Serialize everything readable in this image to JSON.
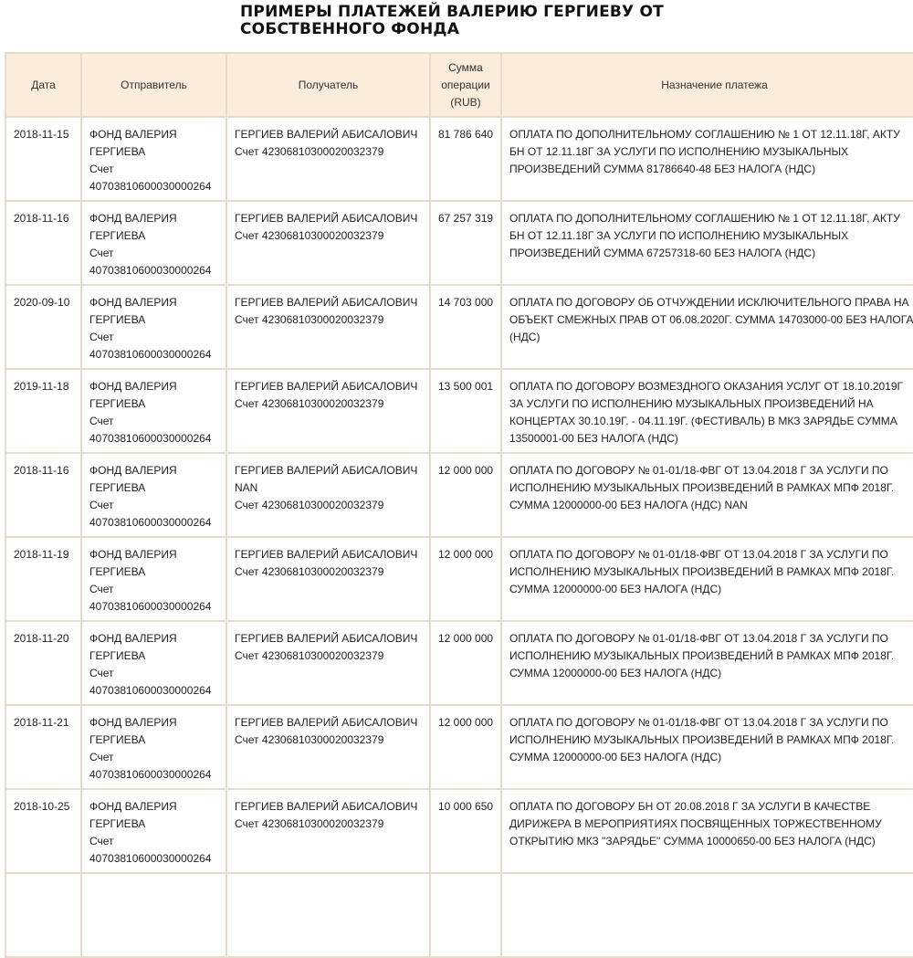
{
  "title": "ПРИМЕРЫ ПЛАТЕЖЕЙ ВАЛЕРИЮ ГЕРГИЕВУ ОТ СОБСТВЕННОГО ФОНДА",
  "columns": [
    "Дата",
    "Отправитель",
    "Получатель",
    "Сумма операции (RUB)",
    "Назначение платежа"
  ],
  "rows": [
    {
      "date": "2018-11-15",
      "sender": "ФОНД ВАЛЕРИЯ ГЕРГИЕВА",
      "sender_account": "Счет 40703810600030000264",
      "recipient": "ГЕРГИЕВ ВАЛЕРИЙ АБИСАЛОВИЧ",
      "recipient_account": "Счет 42306810300020032379",
      "amount": "81 786 640",
      "purpose": "ОПЛАТА ПО ДОПОЛНИТЕЛЬНОМУ СОГЛАШЕНИЮ № 1 ОТ 12.11.18Г, АКТУ БН ОТ 12.11.18Г ЗА УСЛУГИ ПО ИСПОЛНЕНИЮ МУЗЫКАЛЬНЫХ ПРОИЗВЕДЕНИЙ СУММА 81786640-48 БЕЗ НАЛОГА (НДС)"
    },
    {
      "date": "2018-11-16",
      "sender": "ФОНД ВАЛЕРИЯ ГЕРГИЕВА",
      "sender_account": "Счет 40703810600030000264",
      "recipient": "ГЕРГИЕВ ВАЛЕРИЙ АБИСАЛОВИЧ",
      "recipient_account": "Счет 42306810300020032379",
      "amount": "67 257 319",
      "purpose": "ОПЛАТА ПО ДОПОЛНИТЕЛЬНОМУ СОГЛАШЕНИЮ № 1 ОТ 12.11.18Г, АКТУ БН ОТ 12.11.18Г ЗА УСЛУГИ ПО ИСПОЛНЕНИЮ МУЗЫКАЛЬНЫХ ПРОИЗВЕДЕНИЙ СУММА 67257318-60 БЕЗ НАЛОГА (НДС)"
    },
    {
      "date": "2020-09-10",
      "sender": "ФОНД ВАЛЕРИЯ ГЕРГИЕВА",
      "sender_account": "Счет 40703810600030000264",
      "recipient": "ГЕРГИЕВ ВАЛЕРИЙ АБИСАЛОВИЧ",
      "recipient_account": "Счет 42306810300020032379",
      "amount": "14 703 000",
      "purpose": "ОПЛАТА ПО ДОГОВОРУ ОБ ОТЧУЖДЕНИИ ИСКЛЮЧИТЕЛЬНОГО ПРАВА НА ОБЪЕКТ СМЕЖНЫХ ПРАВ ОТ 06.08.2020Г. СУММА 14703000-00 БЕЗ НАЛОГА (НДС)"
    },
    {
      "date": "2019-11-18",
      "sender": "ФОНД ВАЛЕРИЯ ГЕРГИЕВА",
      "sender_account": "Счет 40703810600030000264",
      "recipient": "ГЕРГИЕВ ВАЛЕРИЙ АБИСАЛОВИЧ",
      "recipient_account": "Счет 42306810300020032379",
      "amount": "13 500 001",
      "purpose": "ОПЛАТА ПО ДОГОВОРУ ВОЗМЕЗДНОГО ОКАЗАНИЯ УСЛУГ ОТ 18.10.2019Г ЗА УСЛУГИ ПО ИСПОЛНЕНИЮ МУЗЫКАЛЬНЫХ ПРОИЗВЕДЕНИЙ НА КОНЦЕРТАХ 30.10.19Г. - 04.11.19Г. (ФЕСТИВАЛЬ) В МКЗ ЗАРЯДЬЕ СУММА 13500001-00 БЕЗ НАЛОГА (НДС)"
    },
    {
      "date": "2018-11-16",
      "sender": "ФОНД ВАЛЕРИЯ ГЕРГИЕВА",
      "sender_account": "Счет 40703810600030000264",
      "recipient": "ГЕРГИЕВ ВАЛЕРИЙ АБИСАЛОВИЧ NAN",
      "recipient_account": "Счет 42306810300020032379",
      "amount": "12 000 000",
      "purpose": "ОПЛАТА ПО ДОГОВОРУ № 01-01/18-ФВГ ОТ 13.04.2018 Г ЗА УСЛУГИ ПО ИСПОЛНЕНИЮ МУЗЫКАЛЬНЫХ ПРОИЗВЕДЕНИЙ В РАМКАХ МПФ 2018Г. СУММА 12000000-00 БЕЗ НАЛОГА (НДС) NAN"
    },
    {
      "date": "2018-11-19",
      "sender": "ФОНД ВАЛЕРИЯ ГЕРГИЕВА",
      "sender_account": "Счет 40703810600030000264",
      "recipient": "ГЕРГИЕВ ВАЛЕРИЙ АБИСАЛОВИЧ",
      "recipient_account": "Счет 42306810300020032379",
      "amount": "12 000 000",
      "purpose": "ОПЛАТА ПО ДОГОВОРУ № 01-01/18-ФВГ ОТ 13.04.2018 Г ЗА УСЛУГИ ПО ИСПОЛНЕНИЮ МУЗЫКАЛЬНЫХ ПРОИЗВЕДЕНИЙ В РАМКАХ МПФ 2018Г. СУММА 12000000-00 БЕЗ НАЛОГА (НДС)"
    },
    {
      "date": "2018-11-20",
      "sender": "ФОНД ВАЛЕРИЯ ГЕРГИЕВА",
      "sender_account": "Счет 40703810600030000264",
      "recipient": "ГЕРГИЕВ ВАЛЕРИЙ АБИСАЛОВИЧ",
      "recipient_account": "Счет 42306810300020032379",
      "amount": "12 000 000",
      "purpose": "ОПЛАТА ПО ДОГОВОРУ № 01-01/18-ФВГ ОТ 13.04.2018 Г ЗА УСЛУГИ ПО ИСПОЛНЕНИЮ МУЗЫКАЛЬНЫХ ПРОИЗВЕДЕНИЙ В РАМКАХ МПФ 2018Г. СУММА 12000000-00 БЕЗ НАЛОГА (НДС)"
    },
    {
      "date": "2018-11-21",
      "sender": "ФОНД ВАЛЕРИЯ ГЕРГИЕВА",
      "sender_account": "Счет 40703810600030000264",
      "recipient": "ГЕРГИЕВ ВАЛЕРИЙ АБИСАЛОВИЧ",
      "recipient_account": "Счет 42306810300020032379",
      "amount": "12 000 000",
      "purpose": "ОПЛАТА ПО ДОГОВОРУ № 01-01/18-ФВГ ОТ 13.04.2018 Г ЗА УСЛУГИ ПО ИСПОЛНЕНИЮ МУЗЫКАЛЬНЫХ ПРОИЗВЕДЕНИЙ В РАМКАХ МПФ 2018Г. СУММА 12000000-00 БЕЗ НАЛОГА (НДС)"
    },
    {
      "date": "2018-10-25",
      "sender": "ФОНД ВАЛЕРИЯ ГЕРГИЕВА",
      "sender_account": "Счет 40703810600030000264",
      "recipient": "ГЕРГИЕВ ВАЛЕРИЙ АБИСАЛОВИЧ",
      "recipient_account": "Счет 42306810300020032379",
      "amount": "10 000 650",
      "purpose": "ОПЛАТА ПО ДОГОВОРУ БН ОТ 20.08.2018 Г ЗА УСЛУГИ В КАЧЕСТВЕ ДИРИЖЕРА В МЕРОПРИЯТИЯХ ПОСВЯЩЕННЫХ ТОРЖЕСТВЕННОМУ ОТКРЫТИЮ МКЗ \"ЗАРЯДЬЕ\" СУММА 10000650-00 БЕЗ НАЛОГА (НДС)"
    }
  ],
  "colors": {
    "header_bg": "#fbecdc",
    "border": "#e6dccb",
    "text": "#222222"
  }
}
